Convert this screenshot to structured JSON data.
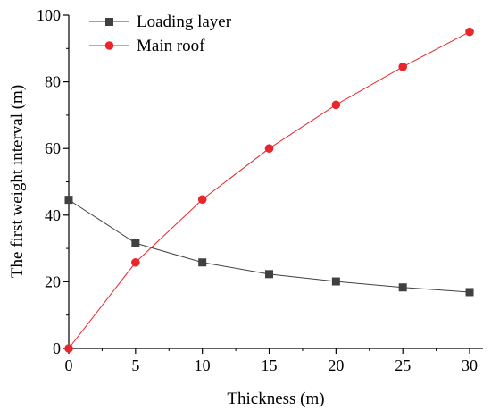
{
  "chart_data": {
    "type": "line",
    "title": "",
    "xlabel": "Thickness (m)",
    "ylabel": "The first weight interval (m)",
    "xlim": [
      0,
      31
    ],
    "ylim": [
      0,
      100
    ],
    "x_ticks": [
      0,
      5,
      10,
      15,
      20,
      25,
      30
    ],
    "y_ticks": [
      0,
      20,
      40,
      60,
      80,
      100
    ],
    "legend_position": "top-left",
    "grid": false,
    "x": [
      0,
      5,
      10,
      15,
      20,
      25,
      30
    ],
    "series": [
      {
        "name": "Loading layer",
        "color": "#404040",
        "marker": "square",
        "values": [
          44.6,
          31.6,
          25.8,
          22.3,
          20.1,
          18.3,
          16.9
        ]
      },
      {
        "name": "Main roof",
        "color": "#e8262c",
        "marker": "circle",
        "values": [
          0,
          25.8,
          44.7,
          60.0,
          73.1,
          84.5,
          95.0
        ]
      }
    ]
  }
}
